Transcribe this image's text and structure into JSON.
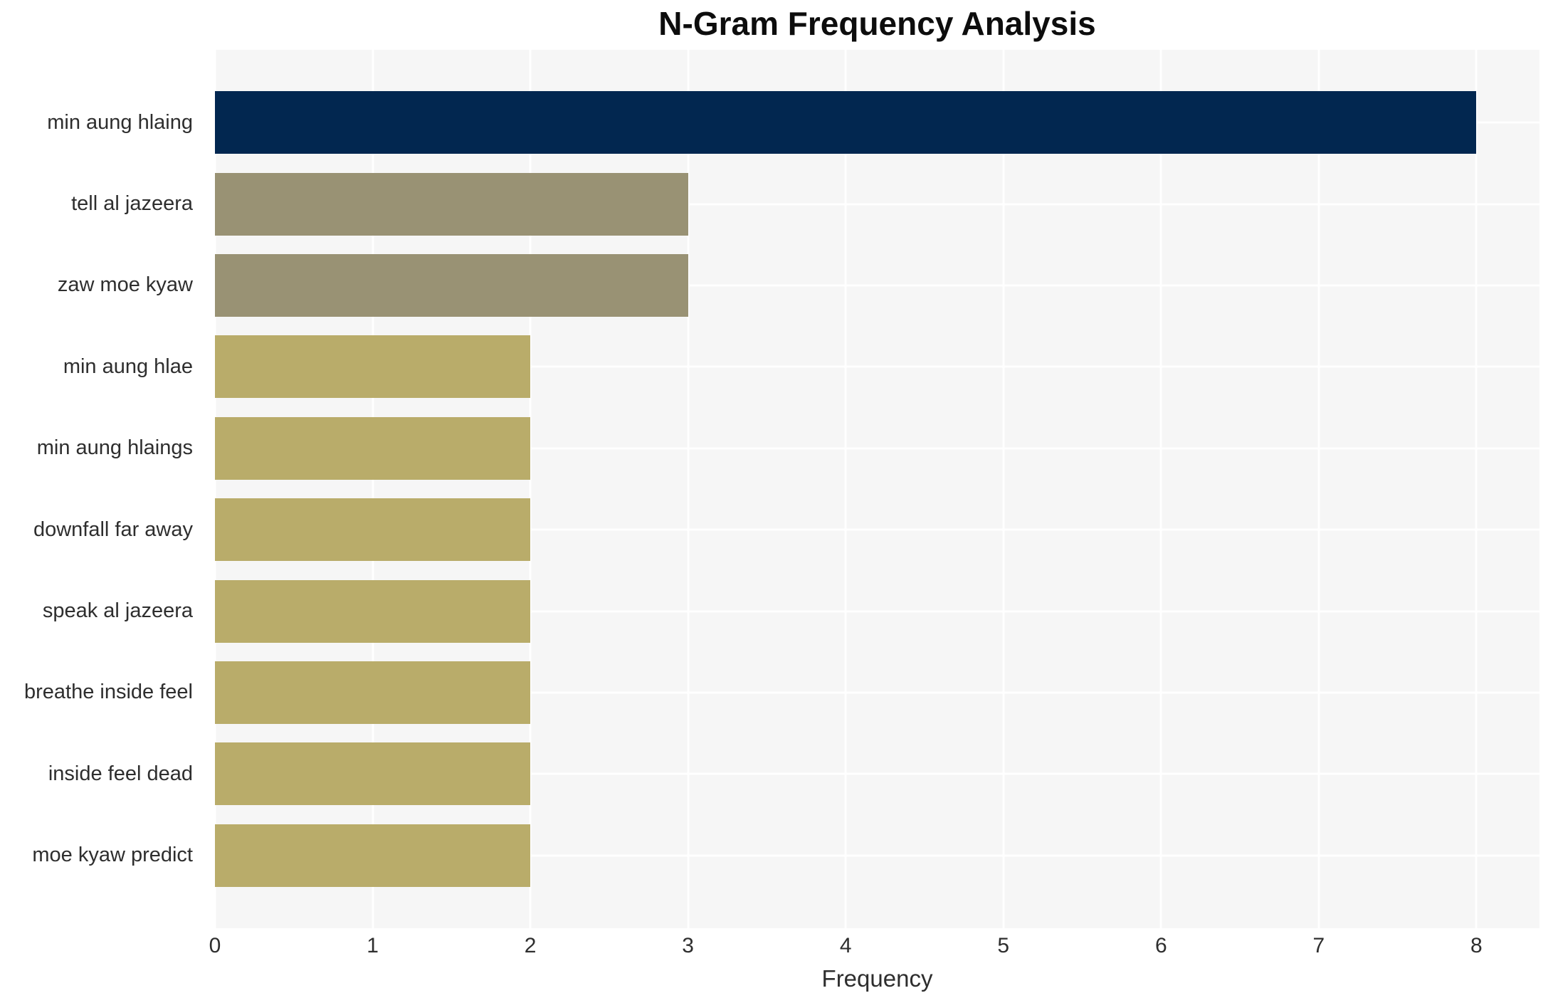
{
  "chart_data": {
    "type": "bar",
    "orientation": "horizontal",
    "title": "N-Gram Frequency Analysis",
    "xlabel": "Frequency",
    "ylabel": "",
    "categories": [
      "min aung hlaing",
      "tell al jazeera",
      "zaw moe kyaw",
      "min aung hlae",
      "min aung hlaings",
      "downfall far away",
      "speak al jazeera",
      "breathe inside feel",
      "inside feel dead",
      "moe kyaw predict"
    ],
    "values": [
      8,
      3,
      3,
      2,
      2,
      2,
      2,
      2,
      2,
      2
    ],
    "bar_colors": [
      "#022750",
      "#999274",
      "#999274",
      "#b9ac6a",
      "#b9ac6a",
      "#b9ac6a",
      "#b9ac6a",
      "#b9ac6a",
      "#b9ac6a",
      "#b9ac6a"
    ],
    "xticks": [
      0,
      1,
      2,
      3,
      4,
      5,
      6,
      7,
      8
    ],
    "xlim": [
      0,
      8.4
    ],
    "grid": true,
    "legend": "none",
    "plot_background": "#f6f6f6",
    "grid_color": "#ffffff",
    "title_color": "#0d0d0d",
    "tick_color": "#2e2e2e"
  }
}
